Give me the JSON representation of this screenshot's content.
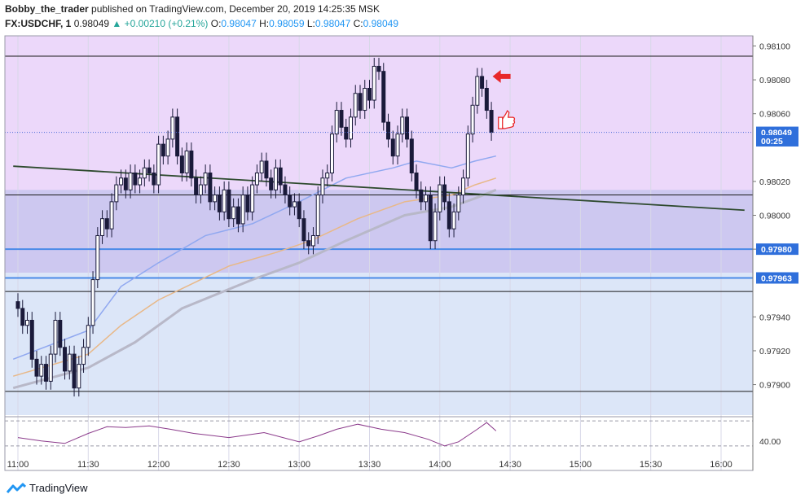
{
  "header": {
    "author": "Bobby_the_trader",
    "published": "published on TradingView.com, December 20, 2019 14:25:35 MSK",
    "symbol": "FX:USDCHF, 1",
    "last": "0.98049",
    "change": "▲ +0.00210 (+0.21%)",
    "o_label": "O:",
    "o": "0.98047",
    "h_label": "H:",
    "h": "0.98059",
    "l_label": "L:",
    "l": "0.98047",
    "c_label": "C:",
    "c": "0.98049"
  },
  "footer": {
    "brand": "TradingView",
    "icon": "tradingview-logo-icon"
  },
  "colors": {
    "candle": "#1a1a3a",
    "ema_blue": "#90a8f0",
    "ema_orange": "#e8b888",
    "ema_gray": "#b8b8c8",
    "trendline": "#2e4a2e",
    "level_line": "#4a8ae8",
    "rsi": "#8b3a8b",
    "arrow": "#e8282a"
  },
  "chart_data": {
    "type": "candlestick",
    "symbol": "FX:USDCHF",
    "timeframe": "1",
    "x_ticks": [
      "11:00",
      "11:30",
      "12:00",
      "12:30",
      "13:00",
      "13:30",
      "14:00",
      "14:30",
      "15:00",
      "15:30",
      "16:00"
    ],
    "y_ticks": [
      0.979,
      0.9792,
      0.9794,
      0.9798,
      0.98,
      0.9802,
      0.9806,
      0.9808,
      0.981
    ],
    "y_tick_labels": [
      "0.97900",
      "0.97920",
      "0.97940",
      "0.97980",
      "0.98000",
      "0.98020",
      "0.98060",
      "0.98080",
      "0.98100"
    ],
    "ylim": [
      0.97882,
      0.98106
    ],
    "price_labels": [
      {
        "text": "0.98049",
        "value": 0.98049
      },
      {
        "text": "00:25",
        "value": 0.98044
      },
      {
        "text": "0.97980",
        "value": 0.9798
      },
      {
        "text": "0.97963",
        "value": 0.97963
      }
    ],
    "horizontal_lines": [
      0.98094,
      0.98012,
      0.9798,
      0.97963,
      0.97955,
      0.97896
    ],
    "zones": [
      {
        "from": 0.98012,
        "to": 0.98106,
        "color": "#ecd8fa"
      },
      {
        "from": 0.97966,
        "to": 0.98015,
        "color": "#cdc8f0"
      },
      {
        "from": 0.97882,
        "to": 0.97966,
        "color": "#dce6f8"
      }
    ],
    "trendline": [
      {
        "t": "10:58",
        "v": 0.98029
      },
      {
        "t": "16:10",
        "v": 0.98003
      }
    ],
    "close_series": [
      [
        "11:00",
        0.97945
      ],
      [
        "11:02",
        0.97935
      ],
      [
        "11:04",
        0.97938
      ],
      [
        "11:06",
        0.97915
      ],
      [
        "11:08",
        0.97905
      ],
      [
        "11:10",
        0.97912
      ],
      [
        "11:12",
        0.97902
      ],
      [
        "11:14",
        0.97918
      ],
      [
        "11:16",
        0.97938
      ],
      [
        "11:18",
        0.97922
      ],
      [
        "11:20",
        0.97908
      ],
      [
        "11:22",
        0.97918
      ],
      [
        "11:24",
        0.97898
      ],
      [
        "11:26",
        0.97912
      ],
      [
        "11:28",
        0.97922
      ],
      [
        "11:30",
        0.97935
      ],
      [
        "11:32",
        0.97962
      ],
      [
        "11:34",
        0.97988
      ],
      [
        "11:36",
        0.97998
      ],
      [
        "11:38",
        0.97992
      ],
      [
        "11:40",
        0.98008
      ],
      [
        "11:42",
        0.98018
      ],
      [
        "11:44",
        0.98022
      ],
      [
        "11:46",
        0.98015
      ],
      [
        "11:48",
        0.98025
      ],
      [
        "11:50",
        0.98018
      ],
      [
        "11:52",
        0.98022
      ],
      [
        "11:54",
        0.98028
      ],
      [
        "11:56",
        0.98025
      ],
      [
        "11:58",
        0.98018
      ],
      [
        "12:00",
        0.98042
      ],
      [
        "12:02",
        0.98035
      ],
      [
        "12:04",
        0.98045
      ],
      [
        "12:06",
        0.98058
      ],
      [
        "12:08",
        0.98035
      ],
      [
        "12:10",
        0.98025
      ],
      [
        "12:12",
        0.98038
      ],
      [
        "12:14",
        0.98022
      ],
      [
        "12:16",
        0.98012
      ],
      [
        "12:18",
        0.98018
      ],
      [
        "12:20",
        0.98025
      ],
      [
        "12:22",
        0.98008
      ],
      [
        "12:24",
        0.98012
      ],
      [
        "12:26",
        0.98002
      ],
      [
        "12:28",
        0.98015
      ],
      [
        "12:30",
        0.97998
      ],
      [
        "12:32",
        0.98005
      ],
      [
        "12:34",
        0.97995
      ],
      [
        "12:36",
        0.98012
      ],
      [
        "12:38",
        0.98002
      ],
      [
        "12:40",
        0.98018
      ],
      [
        "12:42",
        0.98025
      ],
      [
        "12:44",
        0.98032
      ],
      [
        "12:46",
        0.98022
      ],
      [
        "12:48",
        0.98015
      ],
      [
        "12:50",
        0.98028
      ],
      [
        "12:52",
        0.98018
      ],
      [
        "12:54",
        0.98012
      ],
      [
        "12:56",
        0.98005
      ],
      [
        "12:58",
        0.98008
      ],
      [
        "13:00",
        0.97998
      ],
      [
        "13:02",
        0.97985
      ],
      [
        "13:04",
        0.97982
      ],
      [
        "13:06",
        0.97988
      ],
      [
        "13:08",
        0.98012
      ],
      [
        "13:10",
        0.98022
      ],
      [
        "13:12",
        0.98025
      ],
      [
        "13:14",
        0.98048
      ],
      [
        "13:16",
        0.98062
      ],
      [
        "13:18",
        0.98052
      ],
      [
        "13:20",
        0.98045
      ],
      [
        "13:22",
        0.98058
      ],
      [
        "13:24",
        0.98072
      ],
      [
        "13:26",
        0.98062
      ],
      [
        "13:28",
        0.98075
      ],
      [
        "13:30",
        0.98068
      ],
      [
        "13:32",
        0.98088
      ],
      [
        "13:34",
        0.98085
      ],
      [
        "13:36",
        0.98055
      ],
      [
        "13:38",
        0.98045
      ],
      [
        "13:40",
        0.98035
      ],
      [
        "13:42",
        0.98048
      ],
      [
        "13:44",
        0.98058
      ],
      [
        "13:46",
        0.98045
      ],
      [
        "13:48",
        0.98025
      ],
      [
        "13:50",
        0.98015
      ],
      [
        "13:52",
        0.98008
      ],
      [
        "13:54",
        0.98012
      ],
      [
        "13:56",
        0.97985
      ],
      [
        "13:58",
        0.98002
      ],
      [
        "14:00",
        0.98018
      ],
      [
        "14:02",
        0.98008
      ],
      [
        "14:04",
        0.97992
      ],
      [
        "14:06",
        0.98002
      ],
      [
        "14:08",
        0.98012
      ],
      [
        "14:10",
        0.98022
      ],
      [
        "14:12",
        0.98048
      ],
      [
        "14:14",
        0.98065
      ],
      [
        "14:16",
        0.98082
      ],
      [
        "14:18",
        0.98075
      ],
      [
        "14:20",
        0.98062
      ],
      [
        "14:22",
        0.98049
      ]
    ],
    "ema_blue": [
      [
        "10:58",
        0.97915
      ],
      [
        "11:30",
        0.97932
      ],
      [
        "11:44",
        0.97958
      ],
      [
        "12:00",
        0.97972
      ],
      [
        "12:20",
        0.97988
      ],
      [
        "12:40",
        0.97995
      ],
      [
        "13:00",
        0.98008
      ],
      [
        "13:10",
        0.98015
      ],
      [
        "13:20",
        0.98022
      ],
      [
        "13:40",
        0.98028
      ],
      [
        "13:50",
        0.98032
      ],
      [
        "14:05",
        0.98028
      ],
      [
        "14:15",
        0.98032
      ],
      [
        "14:24",
        0.98035
      ]
    ],
    "ema_orange": [
      [
        "10:58",
        0.97905
      ],
      [
        "11:30",
        0.97918
      ],
      [
        "11:44",
        0.97935
      ],
      [
        "12:00",
        0.9795
      ],
      [
        "12:30",
        0.9797
      ],
      [
        "12:50",
        0.97978
      ],
      [
        "13:05",
        0.97985
      ],
      [
        "13:25",
        0.97998
      ],
      [
        "13:45",
        0.98008
      ],
      [
        "14:05",
        0.98012
      ],
      [
        "14:15",
        0.98018
      ],
      [
        "14:24",
        0.98022
      ]
    ],
    "ema_gray": [
      [
        "10:58",
        0.97898
      ],
      [
        "11:30",
        0.9791
      ],
      [
        "11:50",
        0.97925
      ],
      [
        "12:10",
        0.97945
      ],
      [
        "12:40",
        0.97962
      ],
      [
        "13:00",
        0.97972
      ],
      [
        "13:20",
        0.97985
      ],
      [
        "13:45",
        0.98
      ],
      [
        "14:05",
        0.98005
      ],
      [
        "14:15",
        0.9801
      ],
      [
        "14:24",
        0.98015
      ]
    ],
    "rsi": {
      "y_tick_label": "40.00",
      "ylim": [
        35,
        75
      ],
      "upper_band": 70,
      "lower_band": 40,
      "values": [
        [
          "11:00",
          50
        ],
        [
          "11:10",
          46
        ],
        [
          "11:20",
          43
        ],
        [
          "11:30",
          55
        ],
        [
          "11:38",
          63
        ],
        [
          "11:46",
          62
        ],
        [
          "11:56",
          64
        ],
        [
          "12:05",
          60
        ],
        [
          "12:15",
          55
        ],
        [
          "12:30",
          50
        ],
        [
          "12:45",
          56
        ],
        [
          "13:00",
          45
        ],
        [
          "13:08",
          52
        ],
        [
          "13:16",
          60
        ],
        [
          "13:25",
          66
        ],
        [
          "13:35",
          60
        ],
        [
          "13:45",
          56
        ],
        [
          "13:55",
          48
        ],
        [
          "14:02",
          40
        ],
        [
          "14:08",
          45
        ],
        [
          "14:16",
          60
        ],
        [
          "14:20",
          68
        ],
        [
          "14:24",
          58
        ]
      ]
    }
  }
}
